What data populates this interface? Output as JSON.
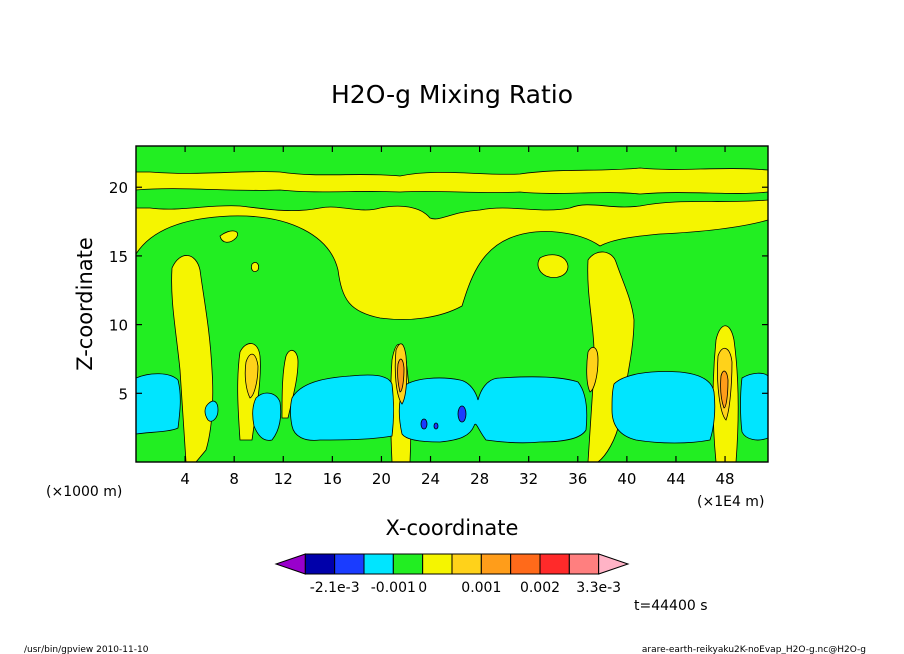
{
  "chart_data": {
    "type": "heatmap",
    "title": "H2O-g Mixing Ratio",
    "xlabel": "X-coordinate",
    "ylabel": "Z-coordinate",
    "x_unit_left": "(×1000 m)",
    "x_unit_right": "(×1E4 m)",
    "xlim": [
      0,
      51.5
    ],
    "ylim": [
      0,
      23
    ],
    "xticks": [
      4,
      8,
      12,
      16,
      20,
      24,
      28,
      32,
      36,
      40,
      44,
      48
    ],
    "yticks": [
      5,
      10,
      15,
      20
    ],
    "time_label": "t=44400 s",
    "colorbar": {
      "colors": [
        "#9900cc",
        "#0000aa",
        "#1a3cff",
        "#00e5ff",
        "#22ee22",
        "#f5f500",
        "#ffd21a",
        "#ff9d1a",
        "#ff6a1a",
        "#ff2a2a",
        "#ff7f7f",
        "#ffb3c6"
      ],
      "labels": [
        "-2.1e-3",
        "-0.001",
        "0",
        "0.001",
        "0.002",
        "3.3e-3"
      ]
    },
    "grid": false
  },
  "footer": {
    "left": "/usr/bin/gpview   2010-11-10",
    "right": "arare-earth-reikyaku2K-noEvap_H2O-g.nc@H2O-g"
  }
}
